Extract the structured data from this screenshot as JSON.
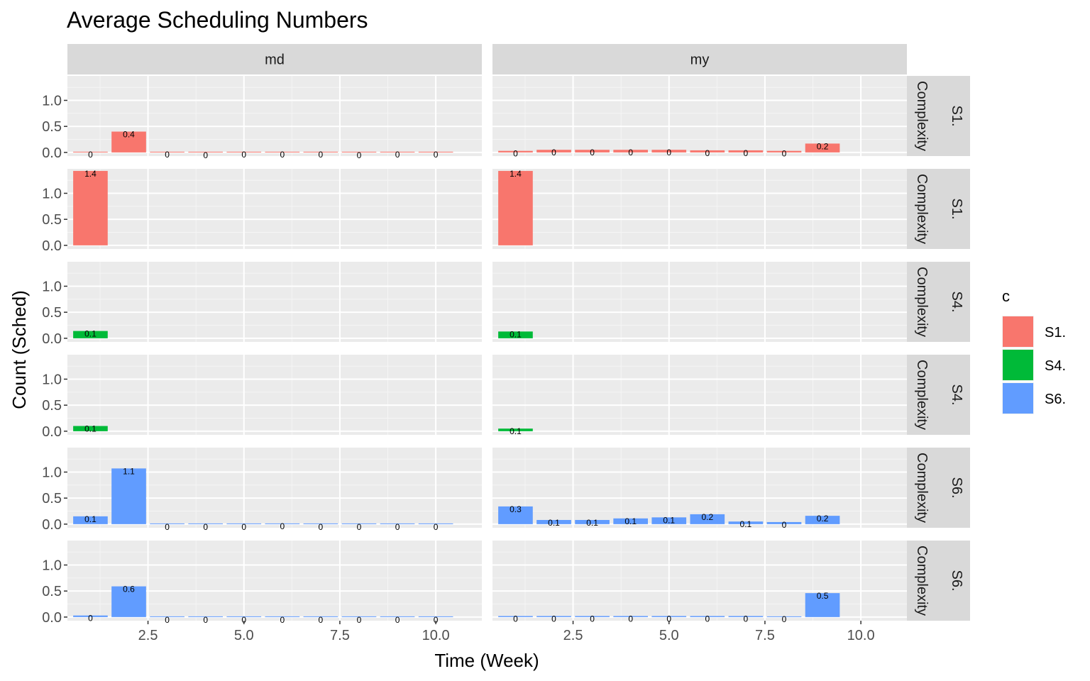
{
  "chart_data": {
    "type": "bar",
    "title": "Average Scheduling Numbers",
    "xlabel": "Time (Week)",
    "ylabel": "Count (Sched)",
    "xlim": [
      0.4,
      11.2
    ],
    "ylim": [
      -0.07,
      1.47
    ],
    "x_ticks": [
      "2.5",
      "5.0",
      "7.5",
      "10.0"
    ],
    "x_tick_values": [
      2.5,
      5.0,
      7.5,
      10.0
    ],
    "y_ticks": [
      "0.0",
      "0.5",
      "1.0"
    ],
    "y_tick_values": [
      0.0,
      0.5,
      1.0
    ],
    "columns": [
      "md",
      "my"
    ],
    "rows": [
      {
        "label": "S1. Complexity",
        "strip": "Complexity\nS1.",
        "color_group": "S1."
      },
      {
        "label": "S1. Complexity",
        "strip": "Complexity\nS1.",
        "color_group": "S1."
      },
      {
        "label": "S4. Complexity",
        "strip": "Complexity\nS4.",
        "color_group": "S4."
      },
      {
        "label": "S4. Complexity",
        "strip": "Complexity\nS4.",
        "color_group": "S4."
      },
      {
        "label": "S6. Complexity",
        "strip": "Complexity\nS6.",
        "color_group": "S6."
      },
      {
        "label": "S6. Complexity",
        "strip": "Complexity\nS6.",
        "color_group": "S6."
      }
    ],
    "legend": {
      "title": "c",
      "placement": "right",
      "entries": [
        {
          "name": "S1.",
          "color": "#F8766D"
        },
        {
          "name": "S4.",
          "color": "#00BA38"
        },
        {
          "name": "S6.",
          "color": "#619CFF"
        }
      ]
    },
    "panels": [
      {
        "row": 0,
        "col": 0,
        "x": [
          1,
          2,
          3,
          4,
          5,
          6,
          7,
          8,
          9,
          10
        ],
        "values": [
          0.01,
          0.4,
          0.01,
          0,
          0.01,
          0.01,
          0.01,
          0,
          0.01,
          0.01
        ],
        "labels": [
          "0",
          "0.4",
          "0",
          "0",
          "0",
          "0",
          "0",
          "0",
          "0",
          "0"
        ]
      },
      {
        "row": 0,
        "col": 1,
        "x": [
          1,
          2,
          3,
          4,
          5,
          6,
          7,
          8,
          9
        ],
        "values": [
          0.03,
          0.05,
          0.05,
          0.05,
          0.05,
          0.04,
          0.04,
          0.03,
          0.17
        ],
        "labels": [
          "0",
          "0",
          "0",
          "0",
          "0",
          "0",
          "0",
          "0",
          "0.2"
        ]
      },
      {
        "row": 1,
        "col": 0,
        "x": [
          1
        ],
        "values": [
          1.43
        ],
        "labels": [
          "1.4"
        ]
      },
      {
        "row": 1,
        "col": 1,
        "x": [
          1
        ],
        "values": [
          1.43
        ],
        "labels": [
          "1.4"
        ]
      },
      {
        "row": 2,
        "col": 0,
        "x": [
          1
        ],
        "values": [
          0.14
        ],
        "labels": [
          "0.1"
        ]
      },
      {
        "row": 2,
        "col": 1,
        "x": [
          1
        ],
        "values": [
          0.13
        ],
        "labels": [
          "0.1"
        ]
      },
      {
        "row": 3,
        "col": 0,
        "x": [
          1
        ],
        "values": [
          0.1
        ],
        "labels": [
          "0.1"
        ]
      },
      {
        "row": 3,
        "col": 1,
        "x": [
          1
        ],
        "values": [
          0.05
        ],
        "labels": [
          "0.1"
        ]
      },
      {
        "row": 4,
        "col": 0,
        "x": [
          1,
          2,
          3,
          4,
          5,
          6,
          7,
          8,
          9,
          10
        ],
        "values": [
          0.15,
          1.07,
          0,
          0,
          0,
          0.01,
          0,
          0,
          0,
          0
        ],
        "labels": [
          "0.1",
          "1.1",
          "0",
          "0",
          "0",
          "0",
          "0",
          "0",
          "0",
          "0"
        ]
      },
      {
        "row": 4,
        "col": 1,
        "x": [
          1,
          2,
          3,
          4,
          5,
          6,
          7,
          8,
          9
        ],
        "values": [
          0.34,
          0.08,
          0.08,
          0.11,
          0.13,
          0.19,
          0.05,
          0.04,
          0.16
        ],
        "labels": [
          "0.3",
          "0.1",
          "0.1",
          "0.1",
          "0.1",
          "0.2",
          "0.1",
          "0",
          "0.2"
        ]
      },
      {
        "row": 5,
        "col": 0,
        "x": [
          1,
          2,
          3,
          4,
          5,
          6,
          7,
          8,
          9,
          10
        ],
        "values": [
          0.03,
          0.59,
          0,
          0,
          0,
          0,
          0,
          0,
          0,
          0
        ],
        "labels": [
          "0",
          "0.6",
          "0",
          "0",
          "0",
          "0",
          "0",
          "0",
          "0",
          "0"
        ]
      },
      {
        "row": 5,
        "col": 1,
        "x": [
          1,
          2,
          3,
          4,
          5,
          6,
          7,
          8,
          9
        ],
        "values": [
          0.02,
          0.02,
          0.02,
          0.02,
          0.02,
          0.02,
          0.02,
          0.01,
          0.46
        ],
        "labels": [
          "0",
          "0",
          "0",
          "0",
          "0",
          "0",
          "0",
          "0",
          "0.5"
        ]
      }
    ]
  }
}
